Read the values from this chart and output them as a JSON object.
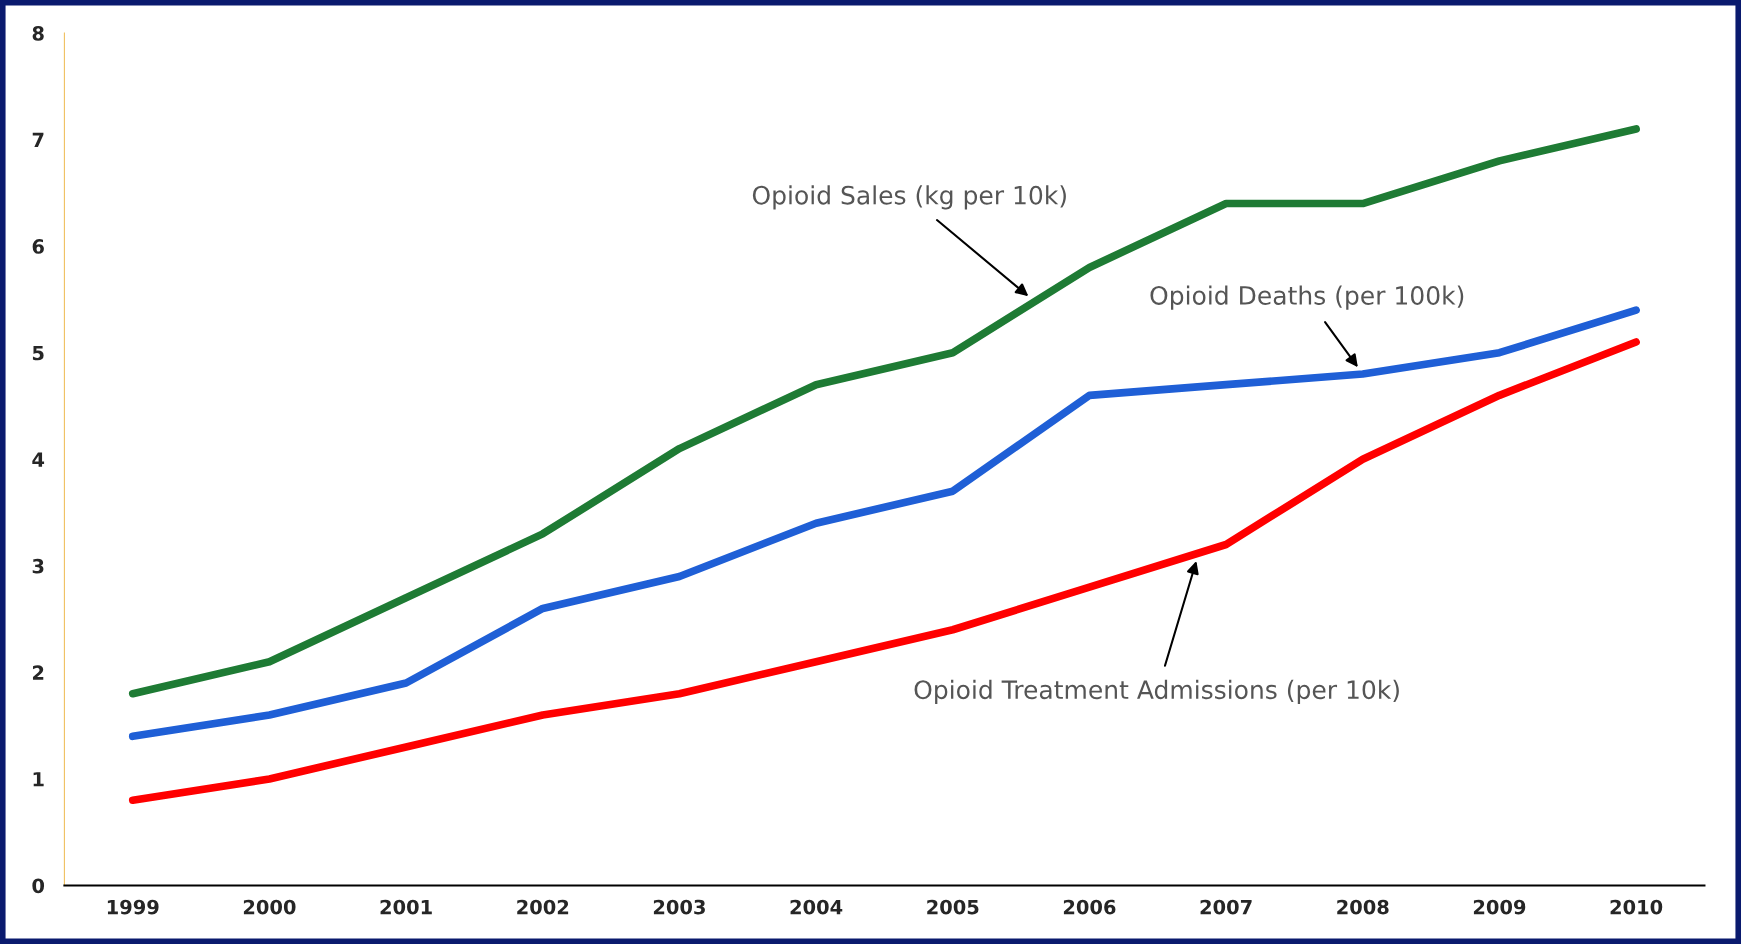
{
  "chart_data": {
    "type": "line",
    "categories": [
      "1999",
      "2000",
      "2001",
      "2002",
      "2003",
      "2004",
      "2005",
      "2006",
      "2007",
      "2008",
      "2009",
      "2010"
    ],
    "series": [
      {
        "name": "Opioid Sales (kg per 10k)",
        "color": "#1e7b34",
        "values": [
          1.8,
          2.1,
          2.7,
          3.3,
          4.1,
          4.7,
          5.0,
          5.8,
          6.4,
          6.4,
          6.8,
          7.1
        ]
      },
      {
        "name": "Opioid Deaths (per 100k)",
        "color": "#1f5fd6",
        "values": [
          1.4,
          1.6,
          1.9,
          2.6,
          2.9,
          3.4,
          3.7,
          4.6,
          4.7,
          4.8,
          5.0,
          5.4
        ]
      },
      {
        "name": "Opioid Treatment Admissions (per 10k)",
        "color": "#ff0000",
        "values": [
          0.8,
          1.0,
          1.3,
          1.6,
          1.8,
          2.1,
          2.4,
          2.8,
          3.2,
          4.0,
          4.6,
          5.1
        ]
      }
    ],
    "ylim": [
      0,
      8
    ],
    "yticks": [
      0,
      1,
      2,
      3,
      4,
      5,
      6,
      7,
      8
    ],
    "grid": false,
    "marker": "none",
    "line_style": "solid"
  }
}
